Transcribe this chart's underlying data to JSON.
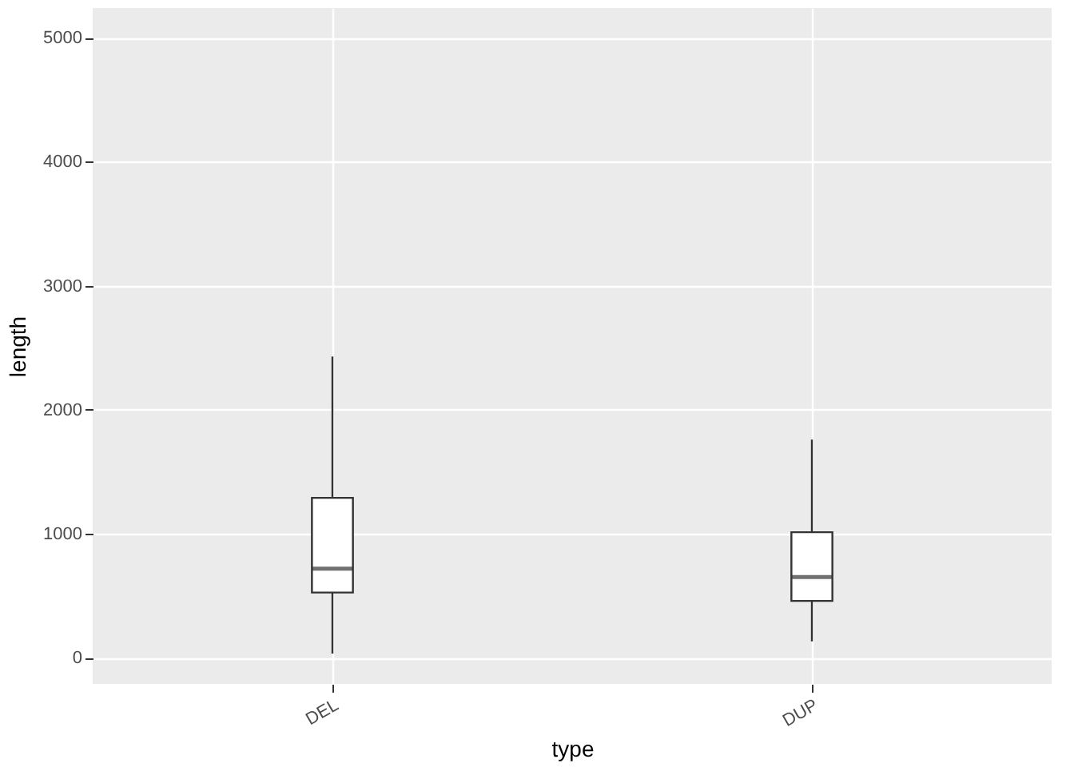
{
  "chart_data": {
    "type": "box",
    "xlabel": "type",
    "ylabel": "length",
    "categories": [
      "DEL",
      "DUP"
    ],
    "boxes": [
      {
        "low": 35,
        "q1": 527,
        "median": 720,
        "q3": 1290,
        "high": 2430
      },
      {
        "low": 133,
        "q1": 459,
        "median": 652,
        "q3": 1013,
        "high": 1760
      }
    ],
    "ylim": [
      -210,
      5240
    ],
    "yticks": [
      0,
      1000,
      2000,
      3000,
      4000,
      5000
    ],
    "grid": true
  }
}
